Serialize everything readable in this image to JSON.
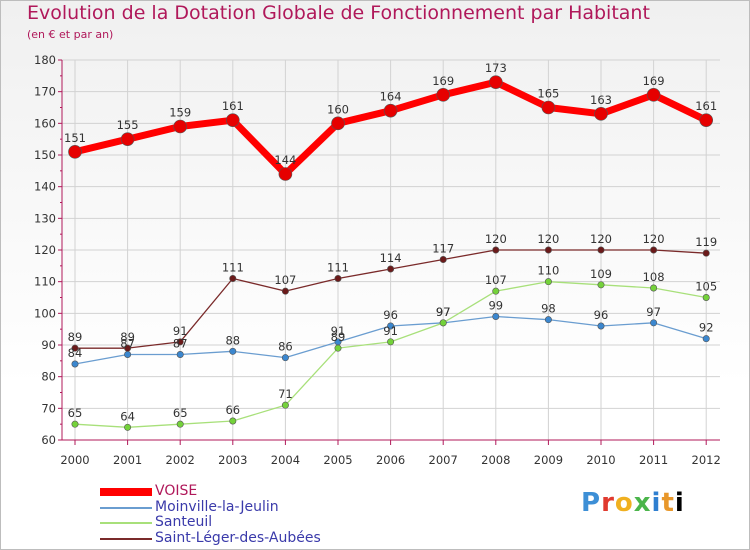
{
  "title": "Evolution de la Dotation Globale de Fonctionnement par Habitant",
  "subtitle": "(en € et par an)",
  "brand": "Proxiti",
  "colors": {
    "title": "#b0185a",
    "axis": "#b0185a",
    "grid": "#d2d2d2"
  },
  "chart_data": {
    "type": "line",
    "title": "Evolution de la Dotation Globale de Fonctionnement par Habitant",
    "subtitle": "(en € et par an)",
    "xlabel": "",
    "ylabel": "",
    "ylim": [
      60,
      180
    ],
    "yticks": [
      60,
      70,
      80,
      90,
      100,
      110,
      120,
      130,
      140,
      150,
      160,
      170,
      180
    ],
    "categories": [
      "2000",
      "2001",
      "2002",
      "2003",
      "2004",
      "2005",
      "2006",
      "2007",
      "2008",
      "2009",
      "2010",
      "2011",
      "2012"
    ],
    "legend_position": "bottom-left",
    "series": [
      {
        "name": "VOISE",
        "color": "#ff0000",
        "marker": "#e60000",
        "width": 7,
        "values": [
          151,
          155,
          159,
          161,
          144,
          160,
          164,
          169,
          173,
          165,
          163,
          169,
          161
        ]
      },
      {
        "name": "Moinville-la-Jeulin",
        "color": "#6a9dd0",
        "marker": "#3b87cf",
        "width": 1.3,
        "values": [
          84,
          87,
          87,
          88,
          86,
          91,
          96,
          97,
          99,
          98,
          96,
          97,
          92
        ]
      },
      {
        "name": "Santeuil",
        "color": "#a8e07a",
        "marker": "#74d23a",
        "width": 1.3,
        "values": [
          65,
          64,
          65,
          66,
          71,
          89,
          91,
          97,
          107,
          110,
          109,
          108,
          105
        ]
      },
      {
        "name": "Saint-Léger-des-Aubées",
        "color": "#7a2a2a",
        "marker": "#6b1a1a",
        "width": 1.3,
        "values": [
          89,
          89,
          91,
          111,
          107,
          111,
          114,
          117,
          120,
          120,
          120,
          120,
          119
        ]
      }
    ]
  }
}
